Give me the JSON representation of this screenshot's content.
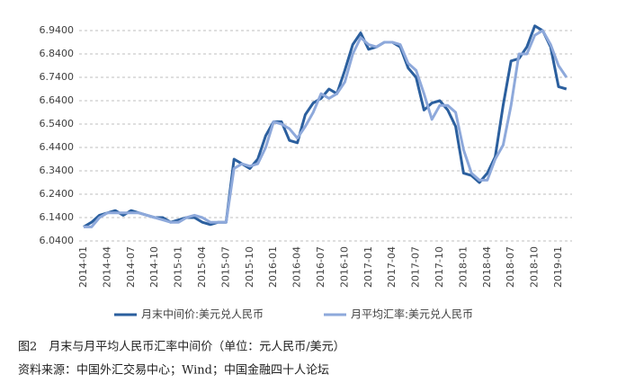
{
  "chart_data": {
    "type": "line",
    "categories": [
      "2014-01",
      null,
      null,
      "2014-04",
      null,
      null,
      "2014-07",
      null,
      null,
      "2014-10",
      null,
      null,
      "2015-01",
      null,
      null,
      "2015-04",
      null,
      null,
      "2015-07",
      null,
      null,
      "2015-10",
      null,
      null,
      "2016-01",
      null,
      null,
      "2016-04",
      null,
      null,
      "2016-07",
      null,
      null,
      "2016-10",
      null,
      null,
      "2017-01",
      null,
      null,
      "2017-04",
      null,
      null,
      "2017-07",
      null,
      null,
      "2017-10",
      null,
      null,
      "2018-01",
      null,
      null,
      "2018-04",
      null,
      null,
      "2018-07",
      null,
      null,
      "2018-10",
      null,
      null,
      "2019-01",
      null
    ],
    "series": [
      {
        "name": "月末中间价:美元兑人民币",
        "color": "#2b5f9e",
        "values": [
          6.1,
          6.12,
          6.15,
          6.16,
          6.17,
          6.15,
          6.17,
          6.16,
          6.15,
          6.14,
          6.14,
          6.12,
          6.13,
          6.14,
          6.14,
          6.12,
          6.11,
          6.12,
          6.12,
          6.39,
          6.37,
          6.35,
          6.39,
          6.49,
          6.55,
          6.55,
          6.47,
          6.46,
          6.58,
          6.63,
          6.65,
          6.69,
          6.67,
          6.77,
          6.88,
          6.93,
          6.86,
          6.87,
          6.89,
          6.89,
          6.87,
          6.78,
          6.74,
          6.6,
          6.63,
          6.64,
          6.6,
          6.53,
          6.33,
          6.32,
          6.29,
          6.33,
          6.4,
          6.62,
          6.81,
          6.82,
          6.87,
          6.96,
          6.94,
          6.87,
          6.7,
          6.69
        ]
      },
      {
        "name": "月平均汇率:美元兑人民币",
        "color": "#8ea9db",
        "values": [
          6.1,
          6.1,
          6.14,
          6.16,
          6.16,
          6.16,
          6.16,
          6.16,
          6.15,
          6.14,
          6.13,
          6.12,
          6.12,
          6.14,
          6.15,
          6.14,
          6.12,
          6.12,
          6.12,
          6.35,
          6.37,
          6.36,
          6.37,
          6.44,
          6.55,
          6.54,
          6.52,
          6.48,
          6.53,
          6.59,
          6.67,
          6.65,
          6.67,
          6.72,
          6.84,
          6.91,
          6.88,
          6.87,
          6.89,
          6.89,
          6.88,
          6.8,
          6.77,
          6.67,
          6.56,
          6.62,
          6.62,
          6.59,
          6.43,
          6.33,
          6.3,
          6.3,
          6.39,
          6.45,
          6.62,
          6.84,
          6.84,
          6.92,
          6.94,
          6.88,
          6.79,
          6.74
        ]
      }
    ],
    "ylim": [
      6.04,
      6.94
    ],
    "yticks": [
      {
        "value": 6.04,
        "label": "6.0400"
      },
      {
        "value": 6.14,
        "label": "6.1400"
      },
      {
        "value": 6.24,
        "label": "6.2400"
      },
      {
        "value": 6.34,
        "label": "6.3400"
      },
      {
        "value": 6.44,
        "label": "6.4400"
      },
      {
        "value": 6.54,
        "label": "6.5400"
      },
      {
        "value": 6.64,
        "label": "6.6400"
      },
      {
        "value": 6.74,
        "label": "6.7400"
      },
      {
        "value": 6.84,
        "label": "6.8400"
      },
      {
        "value": 6.94,
        "label": "6.9400"
      }
    ],
    "grid": true,
    "caption": "图2　月末与月平均人民币汇率中间价（单位：元人民币/美元）",
    "source": "资料来源：中国外汇交易中心；Wind；中国金融四十人论坛"
  }
}
